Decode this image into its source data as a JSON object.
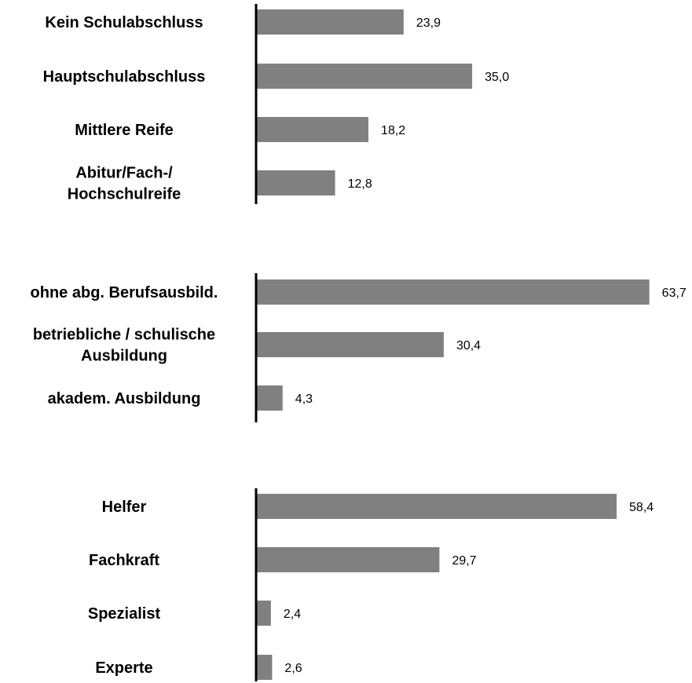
{
  "chart_data": [
    {
      "type": "bar",
      "orientation": "horizontal",
      "categories": [
        [
          "Kein Schulabschluss"
        ],
        [
          "Hauptschulabschluss"
        ],
        [
          "Mittlere Reife"
        ],
        [
          "Abitur/Fach-/",
          "Hochschulreife"
        ]
      ],
      "values": [
        23.9,
        35.0,
        18.2,
        12.8
      ],
      "value_labels": [
        "23,9",
        "35,0",
        "18,2",
        "12,8"
      ],
      "bar_color": "#808080"
    },
    {
      "type": "bar",
      "orientation": "horizontal",
      "categories": [
        [
          "ohne abg. Berufsausbild."
        ],
        [
          "betriebliche / schulische",
          "Ausbildung"
        ],
        [
          "akadem. Ausbildung"
        ]
      ],
      "values": [
        63.7,
        30.4,
        4.3
      ],
      "value_labels": [
        "63,7",
        "30,4",
        "4,3"
      ],
      "bar_color": "#808080"
    },
    {
      "type": "bar",
      "orientation": "horizontal",
      "categories": [
        [
          "Helfer"
        ],
        [
          "Fachkraft"
        ],
        [
          "Spezialist"
        ],
        [
          "Experte"
        ]
      ],
      "values": [
        58.4,
        29.7,
        2.4,
        2.6
      ],
      "value_labels": [
        "58,4",
        "29,7",
        "2,4",
        "2,6"
      ],
      "bar_color": "#808080"
    }
  ]
}
